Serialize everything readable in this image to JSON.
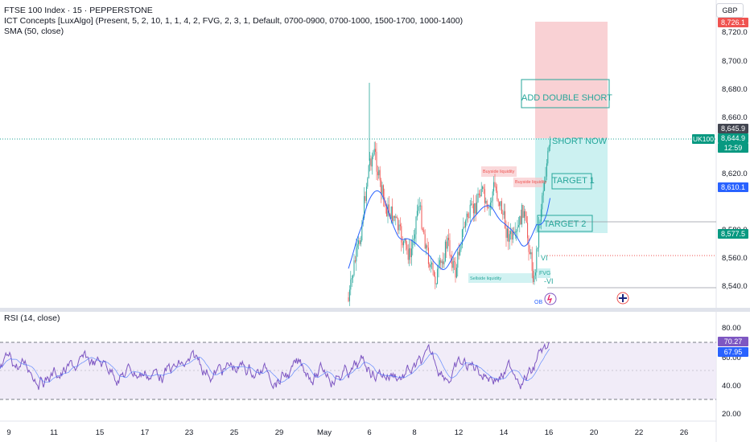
{
  "header": {
    "title": "FTSE 100 Index · 15 · PEPPERSTONE",
    "indicator1": "ICT Concepts [LuxAlgo] (Present, 5, 2, 10, 1, 1, 4, 2, FVG, 2, 3, 1, Default, 0700-0900, 0700-1000, 1500-1700, 1000-1400)",
    "indicator2": "SMA (50, close)"
  },
  "currency": "GBP",
  "price_axis": [
    "8,720.0",
    "8,700.0",
    "8,680.0",
    "8,660.0",
    "8,620.0",
    "8,580.0",
    "8,560.0",
    "8,540.0"
  ],
  "price_tags": {
    "target_top": "8,726.1",
    "sma_last": "8,645.9",
    "symbol": "UK100",
    "last_price": "8,644.9",
    "countdown": "12:59",
    "blue_level": "8,610.1",
    "green_level": "8,577.5"
  },
  "annotations": {
    "add_short": "ADD DOUBLE SHORT",
    "short_now": "SHORT NOW",
    "target1": "TARGET 1",
    "target2": "TARGET 2",
    "buyside1": "Buyside liquidity",
    "buyside2": "Buyside liquidity",
    "sellside": "Sellside liquidity",
    "fvg": "FVG",
    "vi1": "VI",
    "vi2": "-VI",
    "ob": "OB"
  },
  "rsi": {
    "label": "RSI (14, close)",
    "axis": [
      "80.00",
      "60.00",
      "40.00",
      "20.00"
    ],
    "value_rsi": "70.27",
    "value_ma": "67.95"
  },
  "time_axis": [
    "9",
    "11",
    "15",
    "17",
    "23",
    "25",
    "29",
    "May",
    "6",
    "8",
    "12",
    "14",
    "16",
    "20",
    "22",
    "26"
  ],
  "colors": {
    "up": "#26a69a",
    "down": "#ef5350",
    "sma": "#2962ff",
    "rsi": "#7e57c2",
    "stop_zone": "#f8c9cc",
    "target_zone": "#c6efef"
  }
}
